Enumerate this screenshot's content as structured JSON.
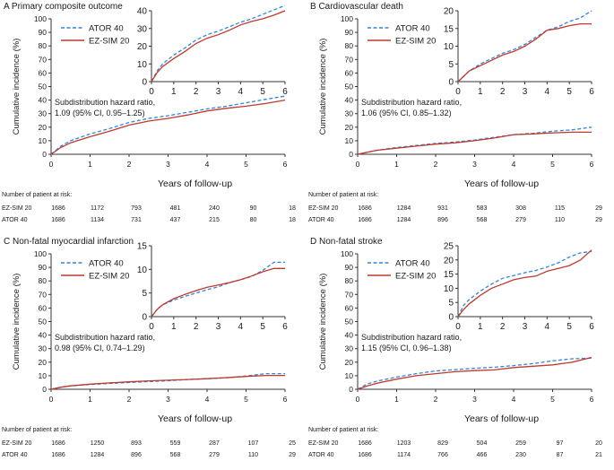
{
  "x_axis_label": "Years of follow-up",
  "y_axis_label": "Cumulative incidence (%)",
  "risk_header": "Number of patient at risk:",
  "colors": {
    "atorvastatin": "#2e86de",
    "ezsim": "#c0392b",
    "axis": "#333333"
  },
  "chart_data": [
    {
      "type": "line",
      "title": "A  Primary composite outcome",
      "xlabel": "Years of follow-up",
      "ylabel": "Cumulative incidence (%)",
      "xlim": [
        0,
        6
      ],
      "ylim": [
        0,
        100
      ],
      "xticks": [
        0,
        1,
        2,
        3,
        4,
        5,
        6
      ],
      "yticks": [
        0,
        10,
        20,
        30,
        40,
        50,
        60,
        70,
        80,
        90,
        100
      ],
      "inset": {
        "ylim": [
          0,
          40
        ],
        "yticks": [
          0,
          10,
          20,
          30,
          40
        ],
        "xticks": [
          0,
          1,
          2,
          3,
          4,
          5,
          6
        ]
      },
      "annotation": [
        "Subdistribution hazard ratio,",
        "1.09 (95% CI, 0.95–1.25)"
      ],
      "x": [
        0,
        0.25,
        0.5,
        1,
        1.5,
        2,
        2.5,
        3,
        3.5,
        4,
        4.5,
        5,
        5.5,
        6
      ],
      "series": [
        {
          "name": "ATOR 40",
          "style": "dashed",
          "values": [
            0,
            6,
            10,
            15,
            19,
            23.5,
            26.5,
            28.5,
            31,
            33.5,
            35.5,
            38,
            40.5,
            43
          ]
        },
        {
          "name": "EZ-SIM 20",
          "style": "solid",
          "values": [
            0,
            5,
            8.5,
            13,
            17,
            21.5,
            24.5,
            26.5,
            29,
            32,
            34,
            35.5,
            37.5,
            40
          ]
        }
      ],
      "risk_table": {
        "times": [
          0,
          1,
          2,
          3,
          4,
          5,
          6
        ],
        "rows": [
          {
            "label": "EZ-SIM 20",
            "values": [
              "1686",
              "1172",
              "793",
              "481",
              "240",
              "90",
              "18"
            ]
          },
          {
            "label": "ATOR 40",
            "values": [
              "1686",
              "1134",
              "731",
              "437",
              "215",
              "80",
              "18"
            ]
          }
        ]
      }
    },
    {
      "type": "line",
      "title": "B  Cardiovascular death",
      "xlabel": "Years of follow-up",
      "ylabel": "Cumulative incidence (%)",
      "xlim": [
        0,
        6
      ],
      "ylim": [
        0,
        100
      ],
      "xticks": [
        0,
        1,
        2,
        3,
        4,
        5,
        6
      ],
      "yticks": [
        0,
        10,
        20,
        30,
        40,
        50,
        60,
        70,
        80,
        90,
        100
      ],
      "inset": {
        "ylim": [
          0,
          20
        ],
        "yticks": [
          0,
          5,
          10,
          15,
          20
        ],
        "xticks": [
          0,
          1,
          2,
          3,
          4,
          5,
          6
        ]
      },
      "annotation": [
        "Subdistribution hazard ratio,",
        "1.06 (95% CI, 0.85–1.32)"
      ],
      "x": [
        0,
        0.25,
        0.5,
        1,
        1.5,
        2,
        2.5,
        3,
        3.5,
        4,
        4.5,
        5,
        5.5,
        6
      ],
      "series": [
        {
          "name": "ATOR 40",
          "style": "dashed",
          "values": [
            0,
            1.5,
            3,
            5,
            6.5,
            8,
            9,
            10.5,
            12.5,
            14.5,
            15.5,
            17,
            18,
            20
          ]
        },
        {
          "name": "EZ-SIM 20",
          "style": "solid",
          "values": [
            0,
            1.5,
            3,
            4.5,
            6,
            7.5,
            8.5,
            10,
            12,
            14.5,
            15,
            15.8,
            16.3,
            16.3
          ]
        }
      ],
      "risk_table": {
        "times": [
          0,
          1,
          2,
          3,
          4,
          5,
          6
        ],
        "rows": [
          {
            "label": "EZ-SIM 20",
            "values": [
              "1686",
              "1284",
              "931",
              "583",
              "308",
              "115",
              "29"
            ]
          },
          {
            "label": "ATOR 40",
            "values": [
              "1686",
              "1284",
              "896",
              "568",
              "279",
              "110",
              "29"
            ]
          }
        ]
      }
    },
    {
      "type": "line",
      "title": "C  Non-fatal myocardial infarction",
      "xlabel": "Years of follow-up",
      "ylabel": "Cumulative incidence (%)",
      "xlim": [
        0,
        6
      ],
      "ylim": [
        0,
        100
      ],
      "xticks": [
        0,
        1,
        2,
        3,
        4,
        5,
        6
      ],
      "yticks": [
        0,
        10,
        20,
        30,
        40,
        50,
        60,
        70,
        80,
        90,
        100
      ],
      "inset": {
        "ylim": [
          0,
          15
        ],
        "yticks": [
          0,
          5,
          10,
          15
        ],
        "xticks": [
          0,
          1,
          2,
          3,
          4,
          5,
          6
        ]
      },
      "annotation": [
        "Subdistribution hazard ratio,",
        "0.98 (95% CI, 0.74–1.29)"
      ],
      "x": [
        0,
        0.25,
        0.5,
        1,
        1.5,
        2,
        2.5,
        3,
        3.5,
        4,
        4.5,
        5,
        5.5,
        6
      ],
      "series": [
        {
          "name": "ATOR 40",
          "style": "dashed",
          "values": [
            0,
            1.5,
            2.5,
            3.5,
            4.3,
            5,
            5.7,
            6.3,
            7.2,
            7.8,
            8.5,
            9.8,
            11.5,
            11.5
          ]
        },
        {
          "name": "EZ-SIM 20",
          "style": "solid",
          "values": [
            0,
            1.5,
            2.5,
            3.8,
            4.7,
            5.5,
            6.2,
            6.7,
            7.2,
            7.8,
            8.6,
            9.5,
            10.2,
            10.2
          ]
        }
      ],
      "risk_table": {
        "times": [
          0,
          1,
          2,
          3,
          4,
          5,
          6
        ],
        "rows": [
          {
            "label": "EZ-SIM 20",
            "values": [
              "1686",
              "1250",
              "893",
              "559",
              "287",
              "107",
              "25"
            ]
          },
          {
            "label": "ATOR 40",
            "values": [
              "1686",
              "1284",
              "896",
              "568",
              "279",
              "110",
              "29"
            ]
          }
        ]
      }
    },
    {
      "type": "line",
      "title": "D  Non-fatal stroke",
      "xlabel": "Years of follow-up",
      "ylabel": "Cumulative incidence (%)",
      "xlim": [
        0,
        6
      ],
      "ylim": [
        0,
        100
      ],
      "xticks": [
        0,
        1,
        2,
        3,
        4,
        5,
        6
      ],
      "yticks": [
        0,
        10,
        20,
        30,
        40,
        50,
        60,
        70,
        80,
        90,
        100
      ],
      "inset": {
        "ylim": [
          0,
          25
        ],
        "yticks": [
          0,
          5,
          10,
          15,
          20,
          25
        ],
        "xticks": [
          0,
          1,
          2,
          3,
          4,
          5,
          6
        ]
      },
      "annotation": [
        "Subdistribution hazard ratio,",
        "1.15 (95% CI, 0.96–1.38)"
      ],
      "x": [
        0,
        0.25,
        0.5,
        1,
        1.5,
        2,
        2.5,
        3,
        3.5,
        4,
        4.5,
        5,
        5.5,
        6
      ],
      "series": [
        {
          "name": "ATOR 40",
          "style": "dashed",
          "values": [
            0,
            4,
            6,
            9,
            11.5,
            13.5,
            14.5,
            15.5,
            16.3,
            17.5,
            19,
            21,
            22.5,
            23
          ]
        },
        {
          "name": "EZ-SIM 20",
          "style": "solid",
          "values": [
            0,
            2.5,
            4.5,
            7.5,
            10,
            11.5,
            13,
            13.8,
            14.3,
            16,
            17,
            18,
            20,
            23.5
          ]
        }
      ],
      "risk_table": {
        "times": [
          0,
          1,
          2,
          3,
          4,
          5,
          6
        ],
        "rows": [
          {
            "label": "EZ-SIM 20",
            "values": [
              "1686",
              "1203",
              "829",
              "504",
              "259",
              "97",
              "20"
            ]
          },
          {
            "label": "ATOR 40",
            "values": [
              "1686",
              "1174",
              "766",
              "466",
              "230",
              "87",
              "21"
            ]
          }
        ]
      }
    }
  ]
}
